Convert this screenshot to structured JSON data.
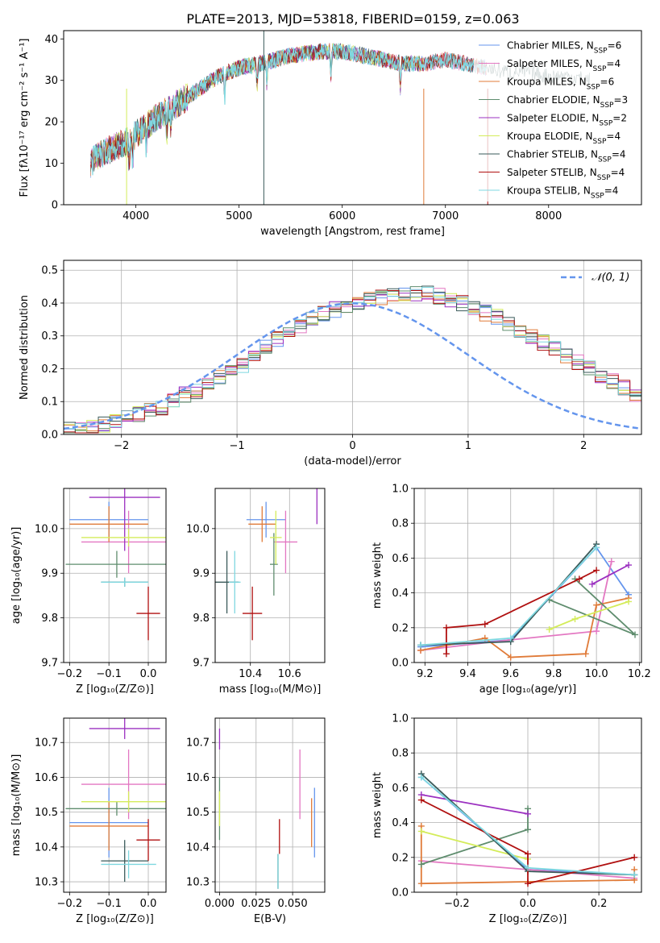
{
  "colors": {
    "chabrier_miles": "#6495ed",
    "salpeter_miles": "#e377c2",
    "kroupa_miles": "#e07b39",
    "chabrier_elodie": "#5f8d6e",
    "salpeter_elodie": "#9b30c0",
    "kroupa_elodie": "#d4ec5a",
    "chabrier_stelib": "#3a5a5a",
    "salpeter_stelib": "#b01010",
    "kroupa_stelib": "#7fd8e0",
    "gaussian": "#6495ed",
    "grid": "#b0b0b0"
  },
  "chart_data": [
    {
      "id": "spectrum",
      "type": "line",
      "title": "PLATE=2013, MJD=53818, FIBERID=0159, z=0.063",
      "xlabel": "wavelength [Angstrom, rest frame]",
      "ylabel": "Flux [fλ10⁻¹⁷ erg cm⁻² s⁻¹ A⁻¹]",
      "xlim": [
        3300,
        8900
      ],
      "ylim": [
        0,
        42
      ],
      "xticks": [
        4000,
        5000,
        6000,
        7000,
        8000
      ],
      "yticks": [
        0,
        10,
        20,
        30,
        40
      ],
      "grid": false,
      "legend_position": "top-right",
      "continuum": {
        "x": [
          3560,
          3650,
          3800,
          3900,
          4000,
          4200,
          4500,
          4800,
          5000,
          5200,
          5500,
          5800,
          6000,
          6200,
          6400,
          6600,
          6800,
          7000,
          7200,
          7400,
          7600,
          7800,
          8000,
          8200,
          8400
        ],
        "y": [
          10,
          12,
          14,
          15,
          17,
          21,
          26,
          31,
          33,
          34,
          36,
          37,
          37,
          36,
          35,
          34,
          34,
          35,
          34,
          33,
          32,
          32,
          31,
          31,
          30
        ]
      },
      "series": [
        {
          "name": "Chabrier MILES, N_SSP=6",
          "color_key": "chabrier_miles",
          "x_end": 7400
        },
        {
          "name": "Salpeter MILES, N_SSP=4",
          "color_key": "salpeter_miles",
          "x_end": 7400
        },
        {
          "name": "Kroupa MILES, N_SSP=6",
          "color_key": "kroupa_miles",
          "x_end": 7400
        },
        {
          "name": "Chabrier ELODIE, N_SSP=3",
          "color_key": "chabrier_elodie",
          "x_end": 6800
        },
        {
          "name": "Salpeter ELODIE, N_SSP=2",
          "color_key": "salpeter_elodie",
          "x_end": 6800
        },
        {
          "name": "Kroupa ELODIE, N_SSP=4",
          "color_key": "kroupa_elodie",
          "x_end": 6800
        },
        {
          "name": "Chabrier STELIB, N_SSP=4",
          "color_key": "chabrier_stelib",
          "x_end": 8400
        },
        {
          "name": "Salpeter STELIB, N_SSP=4",
          "color_key": "salpeter_stelib",
          "x_end": 7400
        },
        {
          "name": "Kroupa STELIB, N_SSP=4",
          "color_key": "kroupa_stelib",
          "x_end": 7400
        }
      ]
    },
    {
      "id": "residuals",
      "type": "histogram",
      "xlabel": "(data-model)/error",
      "ylabel": "Normed distribution",
      "xlim": [
        -2.5,
        2.5
      ],
      "ylim": [
        0,
        0.53
      ],
      "xticks": [
        -2,
        -1,
        0,
        1,
        2
      ],
      "yticks": [
        0.0,
        0.1,
        0.2,
        0.3,
        0.4,
        0.5
      ],
      "grid": true,
      "legend_position": "top-right",
      "legend": "𝒩(0, 1)",
      "bin_width": 0.1,
      "bin_start": -2.5,
      "base": [
        0.02,
        0.02,
        0.02,
        0.03,
        0.04,
        0.05,
        0.06,
        0.07,
        0.08,
        0.1,
        0.12,
        0.13,
        0.15,
        0.17,
        0.19,
        0.21,
        0.24,
        0.27,
        0.29,
        0.31,
        0.33,
        0.35,
        0.37,
        0.38,
        0.39,
        0.4,
        0.41,
        0.42,
        0.43,
        0.43,
        0.43,
        0.43,
        0.42,
        0.41,
        0.4,
        0.38,
        0.37,
        0.36,
        0.34,
        0.32,
        0.3,
        0.28,
        0.26,
        0.24,
        0.22,
        0.2,
        0.18,
        0.16,
        0.14,
        0.12
      ]
    },
    {
      "id": "age_vs_Z",
      "type": "errorbar",
      "xlabel": "Z [log₁₀(Z/Z⊙)]",
      "ylabel": "age  [log₁₀(age/yr)]",
      "xlim": [
        -0.215,
        0.045
      ],
      "ylim": [
        9.7,
        10.09
      ],
      "xticks": [
        -0.2,
        -0.1,
        0.0
      ],
      "yticks": [
        9.7,
        9.8,
        9.9,
        10.0
      ],
      "grid": true,
      "points": [
        {
          "c": "chabrier_miles",
          "x": -0.1,
          "xe": 0.1,
          "y": 10.02,
          "ye": 0.04
        },
        {
          "c": "salpeter_miles",
          "x": -0.05,
          "xe": 0.12,
          "y": 9.97,
          "ye": 0.07
        },
        {
          "c": "kroupa_miles",
          "x": -0.1,
          "xe": 0.1,
          "y": 10.01,
          "ye": 0.04
        },
        {
          "c": "chabrier_elodie",
          "x": -0.08,
          "xe": 0.13,
          "y": 9.92,
          "ye": 0.03
        },
        {
          "c": "salpeter_elodie",
          "x": -0.06,
          "xe": 0.09,
          "y": 10.07,
          "ye": 0.12
        },
        {
          "c": "kroupa_elodie",
          "x": -0.05,
          "xe": 0.12,
          "y": 9.98,
          "ye": 0.02
        },
        {
          "c": "chabrier_stelib",
          "x": -0.06,
          "xe": 0.06,
          "y": 9.88,
          "ye": 0.01
        },
        {
          "c": "salpeter_stelib",
          "x": 0.0,
          "xe": 0.03,
          "y": 9.81,
          "ye": 0.06
        },
        {
          "c": "kroupa_stelib",
          "x": -0.06,
          "xe": 0.06,
          "y": 9.88,
          "ye": 0.01
        }
      ]
    },
    {
      "id": "age_vs_mass",
      "type": "errorbar",
      "xlabel": "mass [log₁₀(M/M⊙)]",
      "ylabel": "",
      "xlim": [
        10.22,
        10.78
      ],
      "ylim": [
        9.7,
        10.09
      ],
      "xticks": [
        10.4,
        10.6
      ],
      "yticks": [
        9.7,
        9.8,
        9.9,
        10.0
      ],
      "grid": true,
      "points": [
        {
          "c": "chabrier_miles",
          "x": 10.48,
          "xe": 0.1,
          "y": 10.02,
          "ye": 0.04
        },
        {
          "c": "salpeter_miles",
          "x": 10.58,
          "xe": 0.06,
          "y": 9.97,
          "ye": 0.07
        },
        {
          "c": "kroupa_miles",
          "x": 10.46,
          "xe": 0.07,
          "y": 10.01,
          "ye": 0.04
        },
        {
          "c": "chabrier_elodie",
          "x": 10.52,
          "xe": 0.02,
          "y": 9.92,
          "ye": 0.07
        },
        {
          "c": "salpeter_elodie",
          "x": 10.74,
          "xe": 0.0,
          "y": 10.07,
          "ye": 0.06
        },
        {
          "c": "kroupa_elodie",
          "x": 10.53,
          "xe": 0.03,
          "y": 9.98,
          "ye": 0.06
        },
        {
          "c": "chabrier_stelib",
          "x": 10.28,
          "xe": 0.06,
          "y": 9.88,
          "ye": 0.07
        },
        {
          "c": "salpeter_stelib",
          "x": 10.41,
          "xe": 0.05,
          "y": 9.81,
          "ye": 0.06
        },
        {
          "c": "kroupa_stelib",
          "x": 10.32,
          "xe": 0.03,
          "y": 9.88,
          "ye": 0.07
        }
      ]
    },
    {
      "id": "weight_vs_age",
      "type": "line",
      "xlabel": "age  [log₁₀(age/yr)]",
      "ylabel": "mass weight",
      "xlim": [
        9.15,
        10.21
      ],
      "ylim": [
        0,
        1.0
      ],
      "xticks": [
        9.2,
        9.4,
        9.6,
        9.8,
        10.0,
        10.2
      ],
      "yticks": [
        0.0,
        0.2,
        0.4,
        0.6,
        0.8,
        1.0
      ],
      "grid": true,
      "series": [
        {
          "c": "chabrier_miles",
          "x": [
            9.18,
            9.6,
            10.0,
            10.15
          ],
          "y": [
            0.09,
            0.13,
            0.66,
            0.39
          ]
        },
        {
          "c": "salpeter_miles",
          "x": [
            9.18,
            9.6,
            10.0,
            10.07
          ],
          "y": [
            0.07,
            0.13,
            0.18,
            0.58
          ]
        },
        {
          "c": "kroupa_miles",
          "x": [
            9.18,
            9.48,
            9.6,
            9.95,
            10.0,
            10.15
          ],
          "y": [
            0.07,
            0.14,
            0.03,
            0.05,
            0.33,
            0.37
          ]
        },
        {
          "c": "chabrier_elodie",
          "x": [
            9.9,
            10.18,
            9.78
          ],
          "y": [
            0.48,
            0.16,
            0.36
          ]
        },
        {
          "c": "salpeter_elodie",
          "x": [
            9.98,
            10.15
          ],
          "y": [
            0.45,
            0.56
          ]
        },
        {
          "c": "kroupa_elodie",
          "x": [
            9.78,
            9.9,
            10.15
          ],
          "y": [
            0.19,
            0.25,
            0.35
          ]
        },
        {
          "c": "chabrier_stelib",
          "x": [
            9.18,
            9.6,
            10.0
          ],
          "y": [
            0.1,
            0.12,
            0.68
          ]
        },
        {
          "c": "salpeter_stelib",
          "x": [
            9.3,
            9.3,
            9.48,
            9.92,
            10.0
          ],
          "y": [
            0.05,
            0.2,
            0.22,
            0.48,
            0.53
          ]
        },
        {
          "c": "kroupa_stelib",
          "x": [
            9.18,
            9.6,
            10.0
          ],
          "y": [
            0.1,
            0.14,
            0.66
          ]
        }
      ]
    },
    {
      "id": "mass_vs_Z",
      "type": "errorbar",
      "xlabel": "Z [log₁₀(Z/Z⊙)]",
      "ylabel": "mass [log₁₀(M/M⊙)]",
      "xlim": [
        -0.215,
        0.045
      ],
      "ylim": [
        10.27,
        10.77
      ],
      "xticks": [
        -0.2,
        -0.1,
        0.0
      ],
      "yticks": [
        10.3,
        10.4,
        10.5,
        10.6,
        10.7
      ],
      "grid": true,
      "points": [
        {
          "c": "chabrier_miles",
          "x": -0.1,
          "xe": 0.1,
          "y": 10.47,
          "ye": 0.1
        },
        {
          "c": "salpeter_miles",
          "x": -0.05,
          "xe": 0.12,
          "y": 10.58,
          "ye": 0.1
        },
        {
          "c": "kroupa_miles",
          "x": -0.1,
          "xe": 0.1,
          "y": 10.46,
          "ye": 0.07
        },
        {
          "c": "chabrier_elodie",
          "x": -0.08,
          "xe": 0.13,
          "y": 10.51,
          "ye": 0.02
        },
        {
          "c": "salpeter_elodie",
          "x": -0.06,
          "xe": 0.09,
          "y": 10.74,
          "ye": 0.03
        },
        {
          "c": "kroupa_elodie",
          "x": -0.05,
          "xe": 0.12,
          "y": 10.53,
          "ye": 0.03
        },
        {
          "c": "chabrier_stelib",
          "x": -0.06,
          "xe": 0.06,
          "y": 10.36,
          "ye": 0.06
        },
        {
          "c": "salpeter_stelib",
          "x": 0.0,
          "xe": 0.03,
          "y": 10.42,
          "ye": 0.06
        },
        {
          "c": "kroupa_stelib",
          "x": -0.05,
          "xe": 0.07,
          "y": 10.35,
          "ye": 0.04
        }
      ]
    },
    {
      "id": "mass_vs_ebv",
      "type": "errorbar",
      "xlabel": "E(B-V)",
      "ylabel": "",
      "xlim": [
        -0.003,
        0.072
      ],
      "ylim": [
        10.27,
        10.77
      ],
      "xticks": [
        0.0,
        0.025,
        0.05
      ],
      "xtick_labels": [
        "0.000",
        "0.025",
        "0.050"
      ],
      "yticks": [
        10.3,
        10.4,
        10.5,
        10.6,
        10.7
      ],
      "grid": true,
      "points": [
        {
          "c": "chabrier_miles",
          "x": 0.065,
          "xe": 0,
          "y": 10.47,
          "ye": 0.1
        },
        {
          "c": "salpeter_miles",
          "x": 0.055,
          "xe": 0,
          "y": 10.58,
          "ye": 0.1
        },
        {
          "c": "kroupa_miles",
          "x": 0.063,
          "xe": 0,
          "y": 10.47,
          "ye": 0.07
        },
        {
          "c": "chabrier_elodie",
          "x": 0.0,
          "xe": 0,
          "y": 10.51,
          "ye": 0.09
        },
        {
          "c": "salpeter_elodie",
          "x": 0.0,
          "xe": 0,
          "y": 10.71,
          "ye": 0.03
        },
        {
          "c": "kroupa_elodie",
          "x": 0.0,
          "xe": 0,
          "y": 10.51,
          "ye": 0.05
        },
        {
          "c": "chabrier_stelib",
          "x": 0.04,
          "xe": 0,
          "y": 10.33,
          "ye": 0.05
        },
        {
          "c": "salpeter_stelib",
          "x": 0.041,
          "xe": 0,
          "y": 10.43,
          "ye": 0.05
        },
        {
          "c": "kroupa_stelib",
          "x": 0.04,
          "xe": 0,
          "y": 10.33,
          "ye": 0.05
        }
      ]
    },
    {
      "id": "weight_vs_Z",
      "type": "line",
      "xlabel": "Z [log₁₀(Z/Z⊙)]",
      "ylabel": "mass weight",
      "xlim": [
        -0.32,
        0.32
      ],
      "ylim": [
        0,
        1.0
      ],
      "xticks": [
        -0.2,
        0.0,
        0.2
      ],
      "yticks": [
        0.0,
        0.2,
        0.4,
        0.6,
        0.8,
        1.0
      ],
      "grid": true,
      "series": [
        {
          "c": "chabrier_miles",
          "x": [
            -0.3,
            0.0,
            0.3
          ],
          "y": [
            0.66,
            0.13,
            0.1
          ]
        },
        {
          "c": "salpeter_miles",
          "x": [
            -0.3,
            0.0,
            0.3
          ],
          "y": [
            0.18,
            0.13,
            0.08
          ]
        },
        {
          "c": "kroupa_miles",
          "x": [
            -0.3,
            -0.3,
            0.0,
            0.3,
            0.3
          ],
          "y": [
            0.38,
            0.05,
            0.06,
            0.07,
            0.13
          ]
        },
        {
          "c": "chabrier_elodie",
          "x": [
            -0.3,
            0.0,
            0.0
          ],
          "y": [
            0.16,
            0.36,
            0.48
          ]
        },
        {
          "c": "salpeter_elodie",
          "x": [
            -0.3,
            0.0
          ],
          "y": [
            0.56,
            0.45
          ]
        },
        {
          "c": "kroupa_elodie",
          "x": [
            -0.3,
            0.0
          ],
          "y": [
            0.35,
            0.19
          ]
        },
        {
          "c": "chabrier_stelib",
          "x": [
            -0.3,
            0.0,
            0.3
          ],
          "y": [
            0.68,
            0.12,
            0.1
          ]
        },
        {
          "c": "salpeter_stelib",
          "x": [
            -0.3,
            0.0,
            0.0,
            0.3
          ],
          "y": [
            0.53,
            0.22,
            0.05,
            0.2
          ]
        },
        {
          "c": "kroupa_stelib",
          "x": [
            -0.3,
            0.0,
            0.3
          ],
          "y": [
            0.66,
            0.14,
            0.1
          ]
        }
      ]
    }
  ]
}
